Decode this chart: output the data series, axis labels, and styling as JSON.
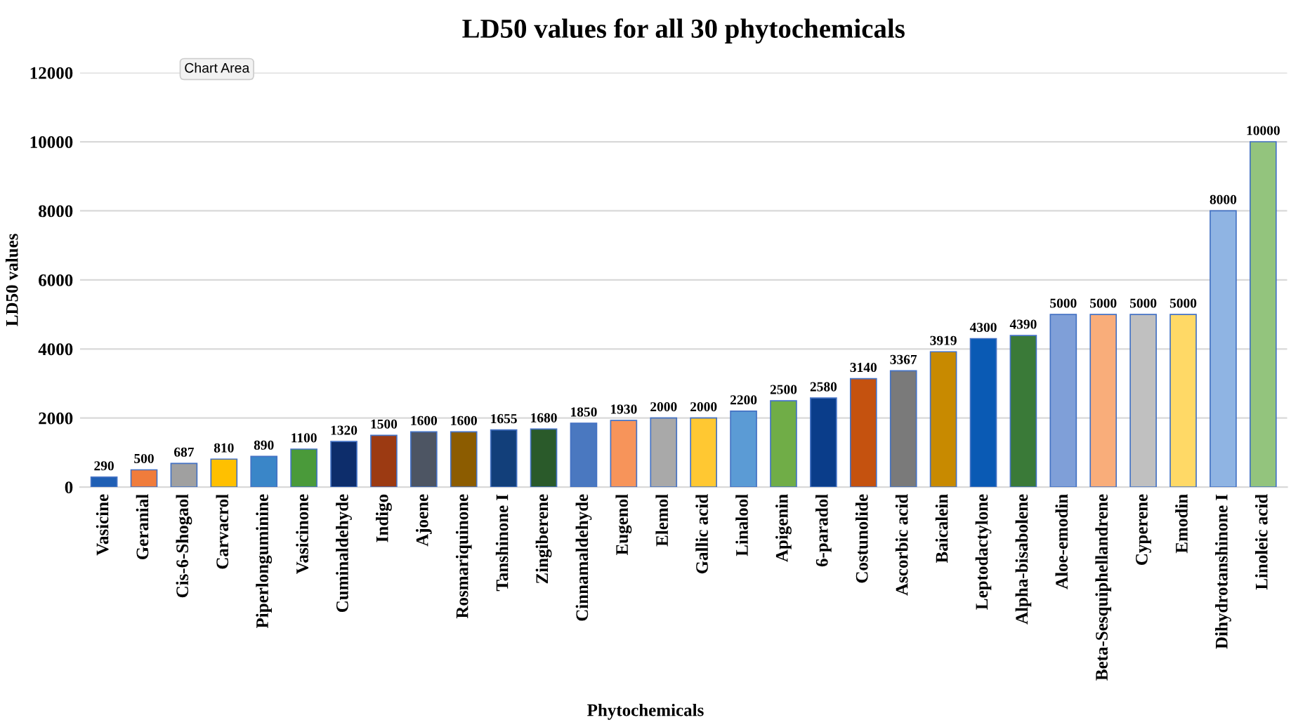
{
  "chart_data": {
    "type": "bar",
    "title": "LD50 values for all 30 phytochemicals",
    "xlabel": "Phytochemicals",
    "ylabel": "LD50 values",
    "categories": [
      "Vasicine",
      "Geranial",
      "Cis-6-Shogaol",
      "Carvacrol",
      "Piperlonguminine",
      "Vasicinone",
      "Cuminaldehyde",
      "Indigo",
      "Ajoene",
      "Rosmariquinone",
      "Tanshinone I",
      "Zingiberene",
      "Cinnamaldehyde",
      "Eugenol",
      "Elemol",
      "Gallic acid",
      "Linalool",
      "Apigenin",
      "6-paradol",
      "Costunolide",
      "Ascorbic acid",
      "Baicalein",
      "Leptodactylone",
      "Alpha-bisabolene",
      "Aloe-emodin",
      "Beta-Sesquiphellandrene",
      "Cyperene",
      "Emodin",
      "Dihydrotanshinone I",
      "Linoleic acid"
    ],
    "values": [
      290,
      500,
      687,
      810,
      890,
      1100,
      1320,
      1500,
      1600,
      1600,
      1655,
      1680,
      1850,
      1930,
      2000,
      2000,
      2200,
      2500,
      2580,
      3140,
      3367,
      3919,
      4300,
      4390,
      5000,
      5000,
      5000,
      5000,
      8000,
      10000
    ],
    "colors": [
      "#1f5fb4",
      "#f07c3c",
      "#a0a0a0",
      "#ffc000",
      "#3a86c8",
      "#4a9a3a",
      "#0d2d6b",
      "#9c3a12",
      "#4d5563",
      "#8c5c00",
      "#123f7a",
      "#2a5a2a",
      "#4a78c0",
      "#f7945a",
      "#a9a9a9",
      "#ffc832",
      "#5b9bd5",
      "#70ad47",
      "#0a3d8a",
      "#c5520f",
      "#7a7a7a",
      "#c88a00",
      "#0a5ab4",
      "#3a7a38",
      "#7f9fd8",
      "#f9ad7a",
      "#c0c0c0",
      "#ffd966",
      "#8fb4e3",
      "#93c47d"
    ],
    "ylim": [
      0,
      12000
    ],
    "yticks": [
      0,
      2000,
      4000,
      6000,
      8000,
      10000,
      12000
    ],
    "grid": "y",
    "data_labels": true,
    "legend": false,
    "annotations": [
      {
        "text": "Chart Area"
      }
    ]
  }
}
